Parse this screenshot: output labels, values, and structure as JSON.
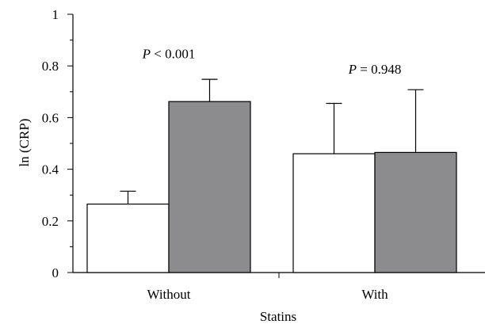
{
  "chart_data": {
    "type": "bar",
    "xlabel": "Statins",
    "ylabel": "ln (CRP)",
    "ylim": [
      0,
      1
    ],
    "yticks": [
      "0",
      "0.2",
      "0.4",
      "0.6",
      "0.8",
      "1"
    ],
    "ytick_values": [
      0,
      0.2,
      0.4,
      0.6,
      0.8,
      1
    ],
    "categories": [
      "Without",
      "With"
    ],
    "series": [
      {
        "color": "#ffffff",
        "values": [
          0.265,
          0.46
        ],
        "error_upper": [
          0.315,
          0.655
        ]
      },
      {
        "color": "#8c8c8e",
        "values": [
          0.662,
          0.465
        ],
        "error_upper": [
          0.748,
          0.708
        ]
      }
    ],
    "annotations": [
      {
        "category": "Without",
        "italic": "P",
        "rest": " < 0.001",
        "y": 0.83
      },
      {
        "category": "With",
        "italic": "P",
        "rest": " = 0.948",
        "y": 0.77
      }
    ],
    "grid": false,
    "legend": "none"
  }
}
